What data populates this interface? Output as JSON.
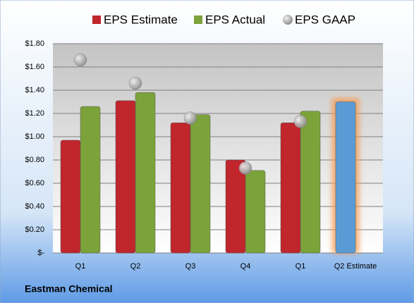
{
  "chart_data": {
    "type": "bar",
    "footer": "Eastman Chemical",
    "categories": [
      "Q1",
      "Q2",
      "Q3",
      "Q4",
      "Q1",
      "Q2 Estimate"
    ],
    "series": [
      {
        "name": "EPS Estimate",
        "color": "#c0262c",
        "colors": [
          "#c0262c",
          "#c0262c",
          "#c0262c",
          "#c0262c",
          "#c0262c",
          "#5b9bd5"
        ],
        "values": [
          0.97,
          1.31,
          1.12,
          0.8,
          1.12,
          1.3
        ]
      },
      {
        "name": "EPS Actual",
        "color": "#7ba33a",
        "values": [
          1.26,
          1.38,
          1.19,
          0.71,
          1.22,
          null
        ]
      },
      {
        "name": "EPS GAAP",
        "color": "#a6a6a6",
        "marker": "circle",
        "values": [
          1.66,
          1.46,
          1.16,
          0.73,
          1.13,
          null
        ]
      }
    ],
    "ylim": [
      0,
      1.8
    ],
    "yticks": [
      {
        "value": 0,
        "label": "$-"
      },
      {
        "value": 0.2,
        "label": "$0.20"
      },
      {
        "value": 0.4,
        "label": "$0.40"
      },
      {
        "value": 0.6,
        "label": "$0.60"
      },
      {
        "value": 0.8,
        "label": "$0.80"
      },
      {
        "value": 1.0,
        "label": "$1.00"
      },
      {
        "value": 1.2,
        "label": "$1.20"
      },
      {
        "value": 1.4,
        "label": "$1.40"
      },
      {
        "value": 1.6,
        "label": "$1.60"
      },
      {
        "value": 1.8,
        "label": "$1.80"
      }
    ],
    "grid": true
  }
}
